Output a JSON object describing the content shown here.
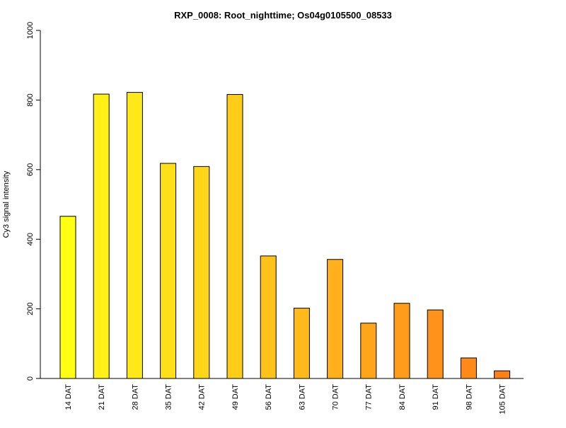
{
  "chart_data": {
    "type": "bar",
    "title": "RXP_0008: Root_nighttime; Os04g0105500_08533",
    "xlabel": "",
    "ylabel": "Cy3 signal intensity",
    "ylim": [
      0,
      1000
    ],
    "yticks": [
      0,
      200,
      400,
      600,
      800,
      1000
    ],
    "grid": false,
    "legend": "none",
    "categories": [
      "14 DAT",
      "21 DAT",
      "28 DAT",
      "35 DAT",
      "42 DAT",
      "49 DAT",
      "56 DAT",
      "63 DAT",
      "70 DAT",
      "77 DAT",
      "84 DAT",
      "91 DAT",
      "98 DAT",
      "105 DAT"
    ],
    "values": [
      466,
      817,
      822,
      618,
      609,
      816,
      352,
      202,
      342,
      159,
      216,
      197,
      59,
      22
    ],
    "colors": [
      "#FFFF14",
      "#FFF115",
      "#FFE817",
      "#FFE018",
      "#FFD61A",
      "#FFCC1A",
      "#FFC21A",
      "#FFB91A",
      "#FFB01A",
      "#FFA51A",
      "#FF9C1A",
      "#FF921A",
      "#FF8A1A",
      "#FF8014"
    ]
  }
}
